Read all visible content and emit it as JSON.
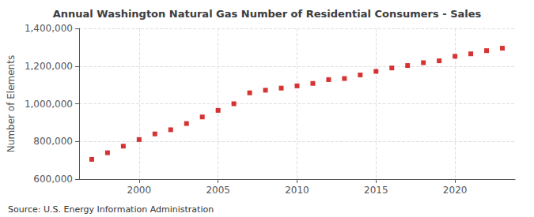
{
  "chart_data": {
    "type": "scatter",
    "title": "Annual Washington Natural Gas Number of Residential Consumers - Sales",
    "ylabel": "Number of Elements",
    "annotations": [
      "Source: U.S. Energy Information Administration"
    ],
    "x": [
      1997,
      1998,
      1999,
      2000,
      2001,
      2002,
      2003,
      2004,
      2005,
      2006,
      2007,
      2008,
      2009,
      2010,
      2011,
      2012,
      2013,
      2014,
      2015,
      2016,
      2017,
      2018,
      2019,
      2020,
      2021,
      2022,
      2023
    ],
    "values": [
      705000,
      740000,
      775000,
      810000,
      840000,
      862000,
      895000,
      930000,
      965000,
      1000000,
      1058000,
      1072000,
      1083000,
      1095000,
      1108000,
      1128000,
      1134000,
      1153000,
      1172000,
      1190000,
      1203000,
      1218000,
      1228000,
      1252000,
      1265000,
      1282000,
      1295000
    ],
    "color": "#cc0000",
    "marker": "square",
    "xlim": [
      1996.2,
      2023.8
    ],
    "xticks": [
      2000,
      2005,
      2010,
      2015,
      2020
    ],
    "ylim": [
      600000,
      1400000
    ],
    "yticks": [
      {
        "value": 600000,
        "label": "600,000"
      },
      {
        "value": 800000,
        "label": "800,000"
      },
      {
        "value": 1000000,
        "label": "1,000,000"
      },
      {
        "value": 1200000,
        "label": "1,200,000"
      },
      {
        "value": 1400000,
        "label": "1,400,000"
      }
    ],
    "grid": true
  }
}
